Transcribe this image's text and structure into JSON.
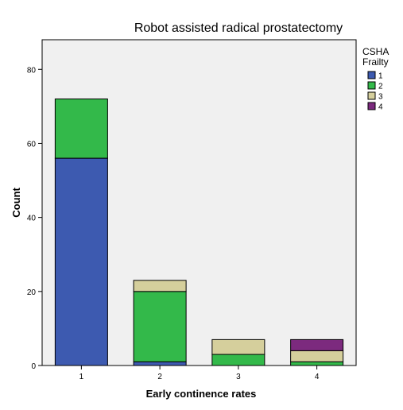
{
  "chart_data": {
    "type": "bar",
    "stacked": true,
    "title": "Robot assisted radical prostatectomy",
    "xlabel": "Early continence rates",
    "ylabel": "Count",
    "categories": [
      "1",
      "2",
      "3",
      "4"
    ],
    "ylim": [
      0,
      88
    ],
    "yticks": [
      0,
      20,
      40,
      60,
      80
    ],
    "legend_title": "CSHA Frailty",
    "legend_position": "right",
    "grid": false,
    "series": [
      {
        "name": "1",
        "color": "#3d5ab0",
        "values": [
          56,
          1,
          0,
          0
        ]
      },
      {
        "name": "2",
        "color": "#33b94a",
        "values": [
          16,
          19,
          3,
          1
        ]
      },
      {
        "name": "3",
        "color": "#d5cf9c",
        "values": [
          0,
          3,
          4,
          3
        ]
      },
      {
        "name": "4",
        "color": "#7c2a7e",
        "values": [
          0,
          0,
          0,
          3
        ]
      }
    ]
  }
}
